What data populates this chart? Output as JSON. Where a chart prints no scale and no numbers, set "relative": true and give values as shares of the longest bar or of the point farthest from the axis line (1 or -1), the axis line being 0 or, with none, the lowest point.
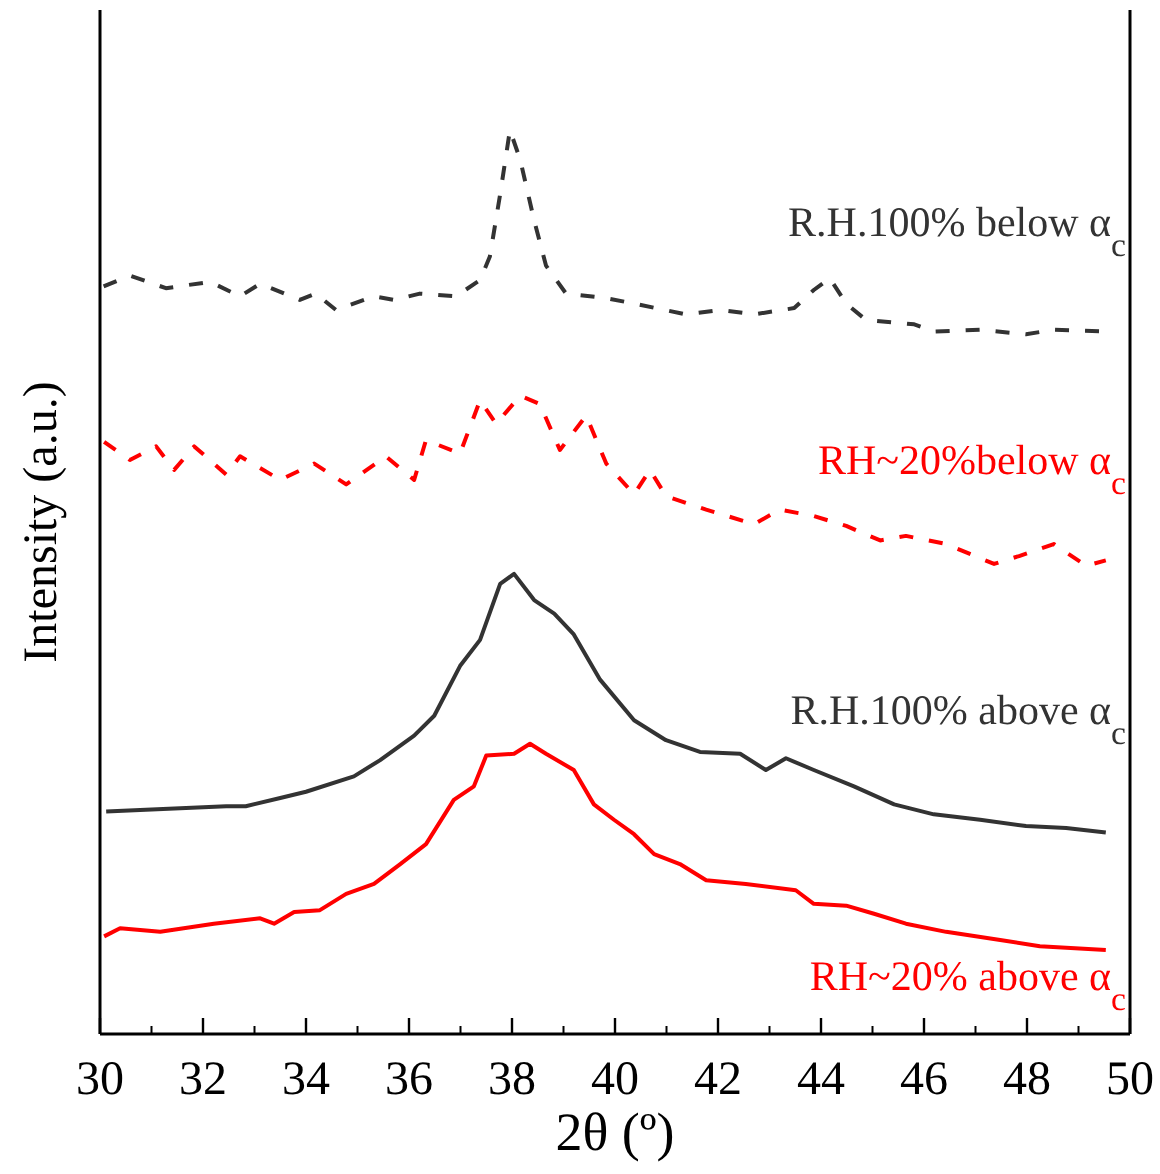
{
  "chart_data": {
    "type": "line",
    "relative": true,
    "xlabel": "2θ (º)",
    "ylabel": "Intensity (a.u.)",
    "xlim": [
      30,
      50
    ],
    "xticks": [
      30,
      32,
      34,
      36,
      38,
      40,
      42,
      44,
      46,
      48,
      50
    ],
    "tick_labels": "x",
    "grid": false,
    "marker": "none",
    "series": [
      {
        "name": "R.H.100% below α$_{c}$",
        "color": "#333333",
        "line_style": "dashed",
        "x": [
          30.07,
          30.58,
          31.28,
          32.14,
          32.72,
          33.11,
          33.88,
          34.19,
          34.58,
          35.32,
          35.71,
          36.21,
          36.91,
          37.38,
          37.57,
          37.77,
          37.96,
          38.16,
          38.43,
          38.66,
          39.05,
          39.83,
          40.37,
          41.38,
          42.04,
          42.7,
          43.48,
          43.86,
          44.17,
          44.49,
          44.87,
          45.81,
          46.19,
          47.09,
          47.98,
          48.52,
          49.53
        ],
        "values": [
          0.827,
          0.839,
          0.825,
          0.832,
          0.816,
          0.83,
          0.812,
          0.819,
          0.801,
          0.816,
          0.812,
          0.819,
          0.816,
          0.834,
          0.86,
          0.929,
          1,
          0.967,
          0.9,
          0.85,
          0.819,
          0.814,
          0.808,
          0.796,
          0.801,
          0.796,
          0.803,
          0.823,
          0.836,
          0.808,
          0.79,
          0.785,
          0.777,
          0.779,
          0.774,
          0.779,
          0.777
        ]
      },
      {
        "name": "RH~20%below α$_{c}$",
        "color": "#ff0000",
        "line_style": "dashed",
        "x": [
          30.08,
          30.58,
          31.09,
          31.44,
          31.83,
          32.45,
          32.72,
          33.5,
          34.16,
          34.78,
          35.55,
          36.1,
          36.33,
          36.99,
          37.38,
          37.69,
          38.16,
          38.54,
          38.93,
          39.44,
          39.83,
          40.37,
          40.68,
          40.99,
          41.77,
          42.7,
          43.2,
          43.86,
          44.49,
          45.15,
          45.65,
          46.43,
          47.36,
          47.86,
          48.52,
          49.15,
          49.53
        ],
        "values": [
          0.655,
          0.635,
          0.65,
          0.624,
          0.65,
          0.619,
          0.639,
          0.613,
          0.631,
          0.608,
          0.639,
          0.613,
          0.657,
          0.642,
          0.701,
          0.675,
          0.706,
          0.697,
          0.646,
          0.684,
          0.631,
          0.597,
          0.624,
          0.595,
          0.58,
          0.564,
          0.58,
          0.573,
          0.562,
          0.546,
          0.551,
          0.542,
          0.52,
          0.529,
          0.542,
          0.518,
          0.524
        ]
      },
      {
        "name": "R.H.100% above α$_{c}$",
        "color": "#333333",
        "line_style": "solid",
        "x": [
          30.12,
          30.89,
          31.67,
          32.45,
          32.83,
          33.5,
          34.0,
          34.93,
          35.44,
          36.1,
          36.49,
          36.99,
          37.38,
          37.77,
          38.04,
          38.43,
          38.82,
          39.2,
          39.71,
          40.37,
          40.99,
          41.65,
          42.43,
          42.93,
          43.32,
          43.86,
          44.64,
          45.42,
          46.19,
          47.09,
          47.98,
          48.76,
          49.53
        ],
        "values": [
          0.246,
          0.248,
          0.25,
          0.252,
          0.252,
          0.261,
          0.268,
          0.285,
          0.303,
          0.33,
          0.352,
          0.407,
          0.436,
          0.498,
          0.509,
          0.48,
          0.465,
          0.442,
          0.392,
          0.347,
          0.325,
          0.312,
          0.31,
          0.292,
          0.305,
          0.292,
          0.274,
          0.254,
          0.243,
          0.237,
          0.23,
          0.228,
          0.223
        ]
      },
      {
        "name": "RH~20% above α$_{c}$",
        "color": "#ff0000",
        "line_style": "solid",
        "x": [
          30.08,
          30.39,
          31.17,
          32.21,
          33.11,
          33.38,
          33.77,
          34.27,
          34.78,
          35.32,
          35.83,
          36.33,
          36.87,
          37.26,
          37.5,
          38.04,
          38.35,
          38.66,
          39.2,
          39.59,
          39.98,
          40.37,
          40.76,
          41.26,
          41.77,
          42.54,
          43.51,
          43.86,
          44.49,
          45.03,
          45.65,
          46.43,
          47.48,
          48.25,
          49.53
        ],
        "values": [
          0.108,
          0.117,
          0.113,
          0.122,
          0.128,
          0.122,
          0.135,
          0.137,
          0.155,
          0.166,
          0.188,
          0.21,
          0.259,
          0.274,
          0.308,
          0.31,
          0.321,
          0.31,
          0.292,
          0.254,
          0.237,
          0.221,
          0.199,
          0.188,
          0.17,
          0.166,
          0.159,
          0.144,
          0.142,
          0.133,
          0.122,
          0.113,
          0.104,
          0.097,
          0.093
        ]
      }
    ]
  }
}
